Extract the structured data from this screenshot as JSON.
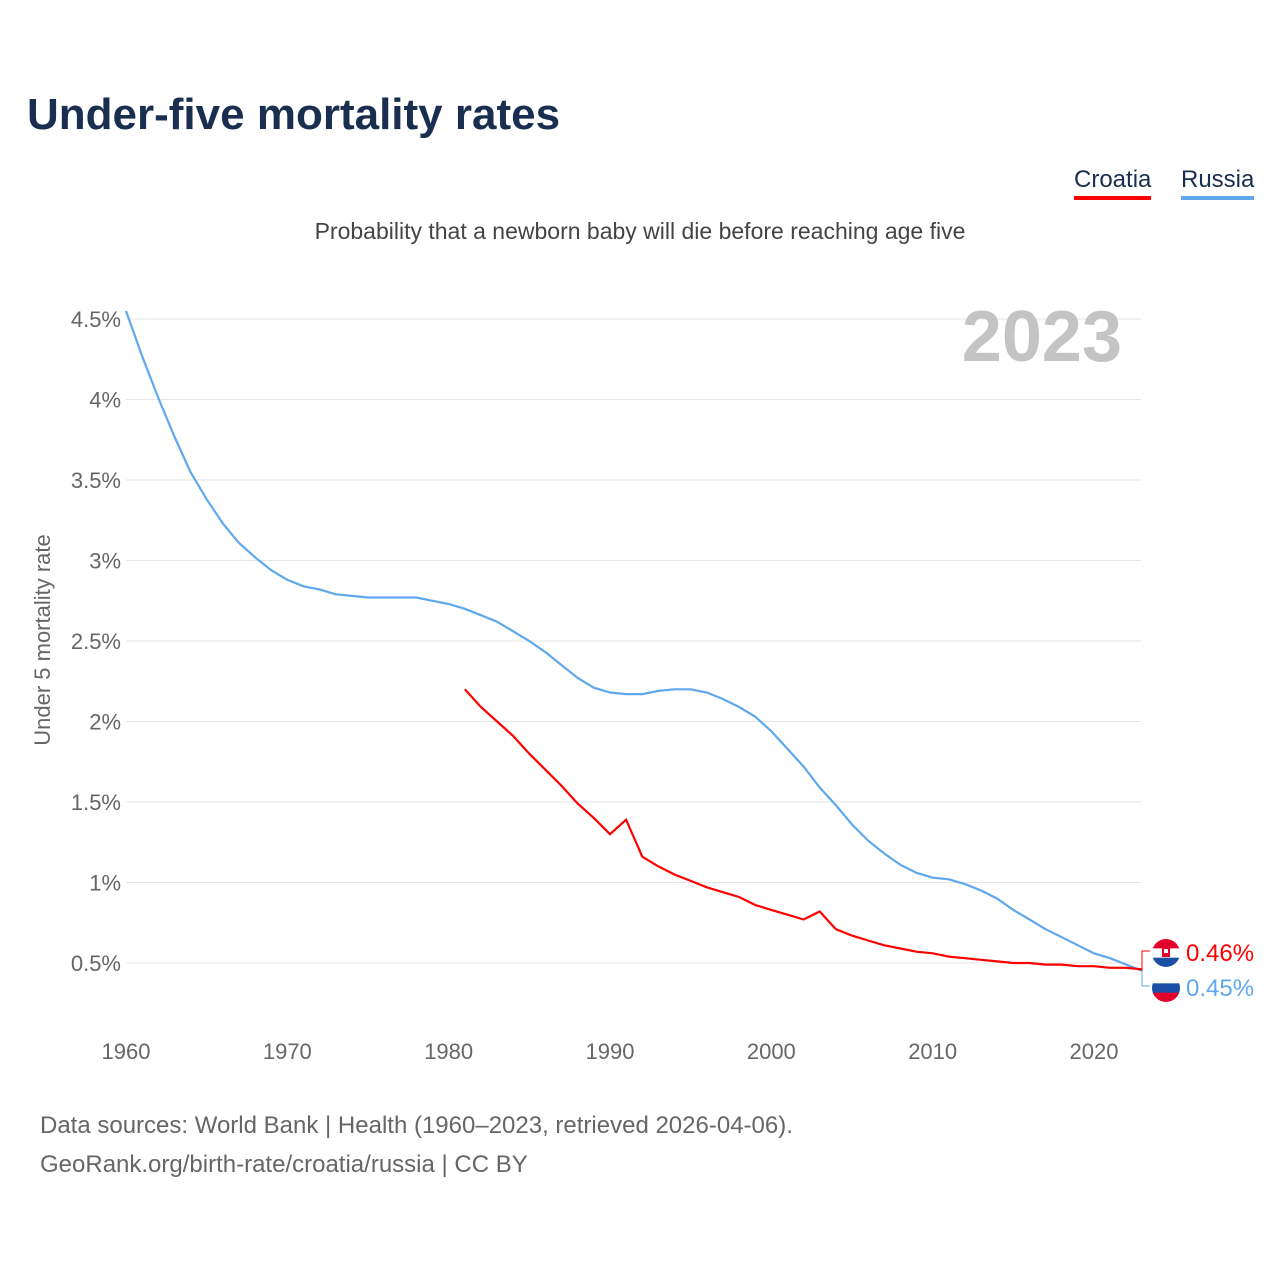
{
  "title": "Under-five mortality rates",
  "subtitle": "Probability that a newborn baby will die before reaching age five",
  "legend": [
    "Croatia",
    "Russia"
  ],
  "footer": [
    "Data sources: World Bank | Health (1960–2023, retrieved 2026-04-06).",
    "GeoRank.org/birth-rate/croatia/russia | CC BY"
  ],
  "chart_data": {
    "type": "line",
    "title": "Under-five mortality rates",
    "ylabel": "Under 5 mortality rate",
    "year_label": "2023",
    "xlim": [
      1960,
      2023
    ],
    "ylim": [
      0,
      4.5
    ],
    "xticks": [
      1960,
      1970,
      1980,
      1990,
      2000,
      2010,
      2020
    ],
    "yticks": [
      {
        "v": 0.5,
        "l": "0.5%"
      },
      {
        "v": 1,
        "l": "1%"
      },
      {
        "v": 1.5,
        "l": "1.5%"
      },
      {
        "v": 2,
        "l": "2%"
      },
      {
        "v": 2.5,
        "l": "2.5%"
      },
      {
        "v": 3,
        "l": "3%"
      },
      {
        "v": 3.5,
        "l": "3.5%"
      },
      {
        "v": 4,
        "l": "4%"
      },
      {
        "v": 4.5,
        "l": "4.5%"
      }
    ],
    "grid": true,
    "series": [
      {
        "name": "Croatia",
        "color": "#ff0000",
        "end_label": "0.46%",
        "start": 1981,
        "values": [
          2.2,
          2.09,
          2.0,
          1.91,
          1.8,
          1.7,
          1.6,
          1.49,
          1.4,
          1.3,
          1.39,
          1.16,
          1.1,
          1.05,
          1.01,
          0.97,
          0.94,
          0.91,
          0.86,
          0.83,
          0.8,
          0.77,
          0.82,
          0.71,
          0.67,
          0.64,
          0.61,
          0.59,
          0.57,
          0.56,
          0.54,
          0.53,
          0.52,
          0.51,
          0.5,
          0.5,
          0.49,
          0.49,
          0.48,
          0.48,
          0.47,
          0.47,
          0.46
        ]
      },
      {
        "name": "Russia",
        "color": "#5fa8ee",
        "end_label": "0.45%",
        "start": 1960,
        "values": [
          4.55,
          4.27,
          4.01,
          3.77,
          3.55,
          3.38,
          3.23,
          3.11,
          3.02,
          2.94,
          2.88,
          2.84,
          2.82,
          2.79,
          2.78,
          2.77,
          2.77,
          2.77,
          2.77,
          2.75,
          2.73,
          2.7,
          2.66,
          2.62,
          2.56,
          2.5,
          2.43,
          2.35,
          2.27,
          2.21,
          2.18,
          2.17,
          2.17,
          2.19,
          2.2,
          2.2,
          2.18,
          2.14,
          2.09,
          2.03,
          1.94,
          1.83,
          1.72,
          1.59,
          1.48,
          1.36,
          1.26,
          1.18,
          1.11,
          1.06,
          1.03,
          1.02,
          0.99,
          0.95,
          0.9,
          0.83,
          0.77,
          0.71,
          0.66,
          0.61,
          0.56,
          0.53,
          0.49,
          0.45
        ]
      }
    ]
  }
}
